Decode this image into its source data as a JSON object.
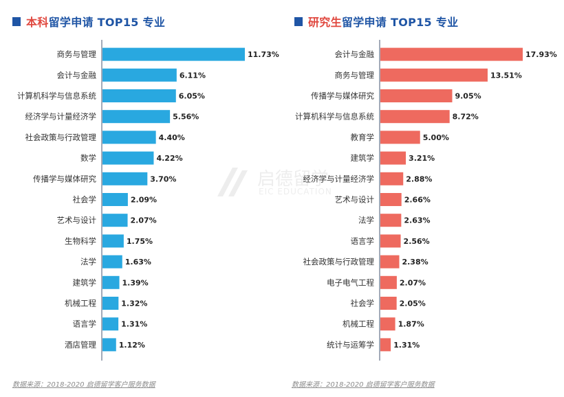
{
  "charts": [
    {
      "title_accent": "本科",
      "title_rest": "留学申请 TOP15 专业",
      "footer": "数据来源：2018-2020 启德留学客户服务数据",
      "chart_data": {
        "type": "bar",
        "orientation": "horizontal",
        "title": "本科留学申请 TOP15 专业",
        "color": "#29a8e0",
        "categories": [
          "商务与管理",
          "会计与金融",
          "计算机科学与信息系统",
          "经济学与计量经济学",
          "社会政策与行政管理",
          "数学",
          "传播学与媒体研究",
          "社会学",
          "艺术与设计",
          "生物科学",
          "法学",
          "建筑学",
          "机械工程",
          "语言学",
          "酒店管理"
        ],
        "values": [
          11.73,
          6.11,
          6.05,
          5.56,
          4.4,
          4.22,
          3.7,
          2.09,
          2.07,
          1.75,
          1.63,
          1.39,
          1.32,
          1.31,
          1.12
        ],
        "value_labels": [
          "11.73%",
          "6.11%",
          "6.05%",
          "5.56%",
          "4.40%",
          "4.22%",
          "3.70%",
          "2.09%",
          "2.07%",
          "1.75%",
          "1.63%",
          "1.39%",
          "1.32%",
          "1.31%",
          "1.12%"
        ],
        "xlim": [
          0,
          11.73
        ],
        "grid": false
      }
    },
    {
      "title_accent": "研究生",
      "title_rest": "留学申请 TOP15 专业",
      "footer": "数据来源：2018-2020 启德留学客户服务数据",
      "chart_data": {
        "type": "bar",
        "orientation": "horizontal",
        "title": "研究生留学申请 TOP15 专业",
        "color": "#ee6a5f",
        "categories": [
          "会计与金融",
          "商务与管理",
          "传播学与媒体研究",
          "计算机科学与信息系统",
          "教育学",
          "建筑学",
          "经济学与计量经济学",
          "艺术与设计",
          "法学",
          "语言学",
          "社会政策与行政管理",
          "电子电气工程",
          "社会学",
          "机械工程",
          "统计与运筹学"
        ],
        "values": [
          17.93,
          13.51,
          9.05,
          8.72,
          5.0,
          3.21,
          2.88,
          2.66,
          2.63,
          2.56,
          2.38,
          2.07,
          2.05,
          1.87,
          1.31
        ],
        "value_labels": [
          "17.93%",
          "13.51%",
          "9.05%",
          "8.72%",
          "5.00%",
          "3.21%",
          "2.88%",
          "2.66%",
          "2.63%",
          "2.56%",
          "2.38%",
          "2.07%",
          "2.05%",
          "1.87%",
          "1.31%"
        ],
        "xlim": [
          0,
          17.93
        ],
        "grid": false
      }
    }
  ],
  "watermark": {
    "name": "启德留学",
    "sub": "EIC EDUCATION"
  }
}
